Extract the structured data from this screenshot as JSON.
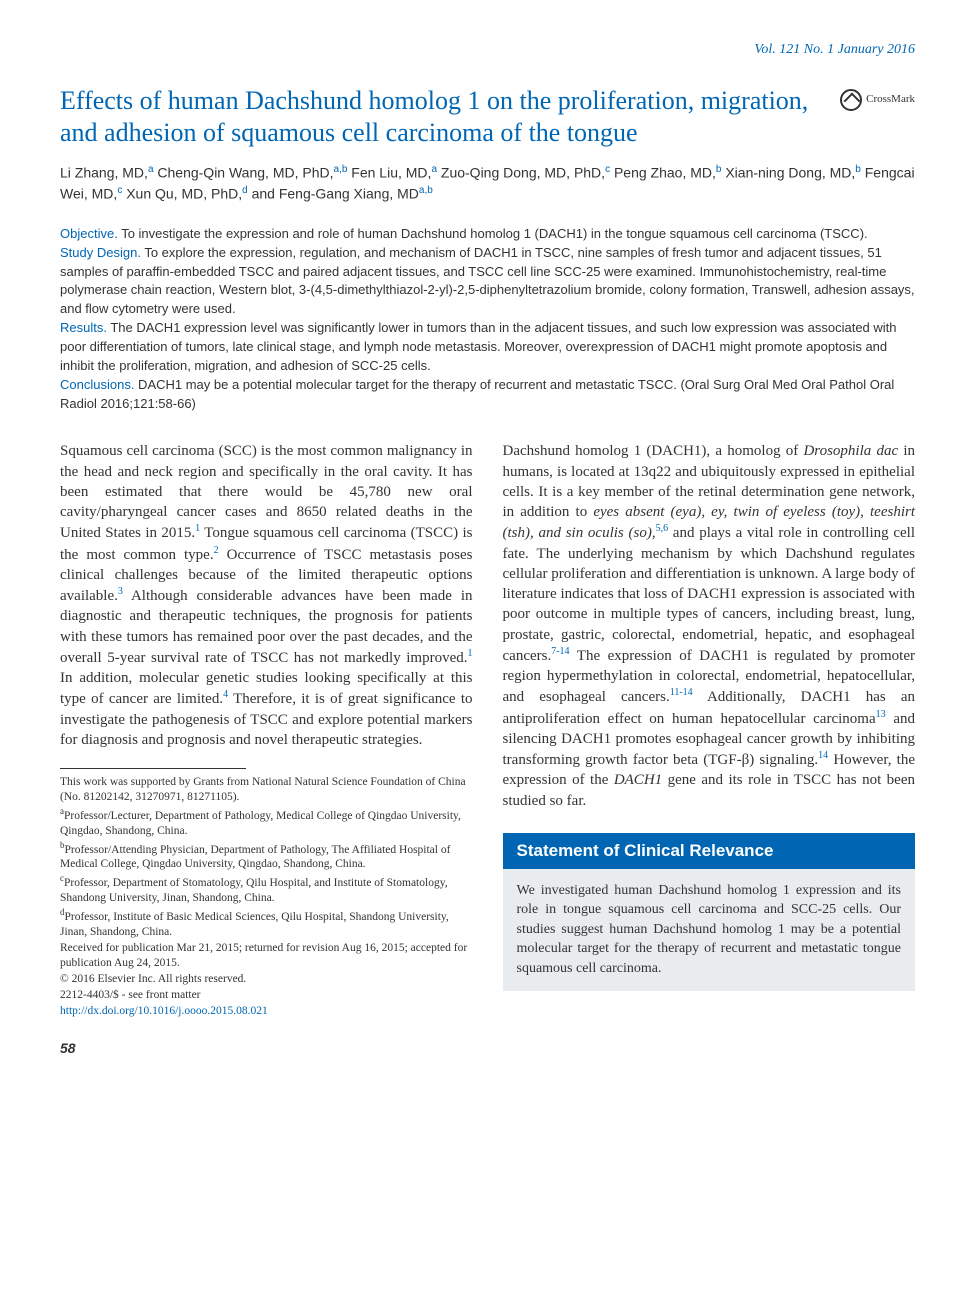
{
  "journal_header": "Vol. 121 No. 1 January 2016",
  "title": "Effects of human Dachshund homolog 1 on the proliferation, migration, and adhesion of squamous cell carcinoma of the tongue",
  "crossmark_label": "CrossMark",
  "authors_html": "Li Zhang, MD,<sup>a</sup> Cheng-Qin Wang, MD, PhD,<sup>a,b</sup> Fen Liu, MD,<sup>a</sup> Zuo-Qing Dong, MD, PhD,<sup>c</sup> Peng Zhao, MD,<sup>b</sup> Xian-ning Dong, MD,<sup>b</sup> Fengcai Wei, MD,<sup>c</sup> Xun Qu, MD, PhD,<sup>d</sup> and Feng-Gang Xiang, MD<sup>a,b</sup>",
  "abstract": {
    "objective_label": "Objective.",
    "objective_text": " To investigate the expression and role of human Dachshund homolog 1 (DACH1) in the tongue squamous cell carcinoma (TSCC).",
    "design_label": "Study Design.",
    "design_text": " To explore the expression, regulation, and mechanism of DACH1 in TSCC, nine samples of fresh tumor and adjacent tissues, 51 samples of paraffin-embedded TSCC and paired adjacent tissues, and TSCC cell line SCC-25 were examined. Immunohistochemistry, real-time polymerase chain reaction, Western blot, 3-(4,5-dimethylthiazol-2-yl)-2,5-diphenyltetrazolium bromide, colony formation, Transwell, adhesion assays, and flow cytometry were used.",
    "results_label": "Results.",
    "results_text": " The DACH1 expression level was significantly lower in tumors than in the adjacent tissues, and such low expression was associated with poor differentiation of tumors, late clinical stage, and lymph node metastasis. Moreover, overexpression of DACH1 might promote apoptosis and inhibit the proliferation, migration, and adhesion of SCC-25 cells.",
    "conclusions_label": "Conclusions.",
    "conclusions_text": " DACH1 may be a potential molecular target for the therapy of recurrent and metastatic TSCC. (Oral Surg Oral Med Oral Pathol Oral Radiol 2016;121:58-66)"
  },
  "body_left_html": "Squamous cell carcinoma (SCC) is the most common malignancy in the head and neck region and specifically in the oral cavity. It has been estimated that there would be 45,780 new oral cavity/pharyngeal cancer cases and 8650 related deaths in the United States in 2015.<sup class=\"ref\">1</sup> Tongue squamous cell carcinoma (TSCC) is the most common type.<sup class=\"ref\">2</sup> Occurrence of TSCC metastasis poses clinical challenges because of the limited therapeutic options available.<sup class=\"ref\">3</sup> Although considerable advances have been made in diagnostic and therapeutic techniques, the prognosis for patients with these tumors has remained poor over the past decades, and the overall 5-year survival rate of TSCC has not markedly improved.<sup class=\"ref\">1</sup> In addition, molecular genetic studies looking specifically at this type of cancer are limited.<sup class=\"ref\">4</sup> Therefore, it is of great significance to investigate the pathogenesis of TSCC and explore potential markers for diagnosis and prognosis and novel therapeutic strategies.",
  "body_right_html": "Dachshund homolog 1 (DACH1), a homolog of <span class=\"italic\">Drosophila dac</span> in humans, is located at 13q22 and ubiquitously expressed in epithelial cells. It is a key member of the retinal determination gene network, in addition to <span class=\"italic\">eyes absent (eya), ey, twin of eyeless (toy), teeshirt (tsh), and sin oculis (so)</span>,<sup class=\"ref\">5,6</sup> and plays a vital role in controlling cell fate. The underlying mechanism by which Dachshund regulates cellular proliferation and differentiation is unknown. A large body of literature indicates that loss of DACH1 expression is associated with poor outcome in multiple types of cancers, including breast, lung, prostate, gastric, colorectal, endometrial, hepatic, and esophageal cancers.<sup class=\"ref\">7-14</sup> The expression of DACH1 is regulated by promoter region hypermethylation in colorectal, endometrial, hepatocellular, and esophageal cancers.<sup class=\"ref\">11-14</sup> Additionally, DACH1 has an antiproliferation effect on human hepatocellular carcinoma<sup class=\"ref\">13</sup> and silencing DACH1 promotes esophageal cancer growth by inhibiting transforming growth factor beta (TGF-β) signaling.<sup class=\"ref\">14</sup> However, the expression of the <span class=\"italic\">DACH1</span> gene and its role in TSCC has not been studied so far.",
  "footnotes": {
    "funding": "This work was supported by Grants from National Natural Science Foundation of China (No. 81202142, 31270971, 81271105).",
    "a": "Professor/Lecturer, Department of Pathology, Medical College of Qingdao University, Qingdao, Shandong, China.",
    "b": "Professor/Attending Physician, Department of Pathology, The Affiliated Hospital of Medical College, Qingdao University, Qingdao, Shandong, China.",
    "c": "Professor, Department of Stomatology, Qilu Hospital, and Institute of Stomatology, Shandong University, Jinan, Shandong, China.",
    "d": "Professor, Institute of Basic Medical Sciences, Qilu Hospital, Shandong University, Jinan, Shandong, China.",
    "received": "Received for publication Mar 21, 2015; returned for revision Aug 16, 2015; accepted for publication Aug 24, 2015.",
    "copyright": "© 2016 Elsevier Inc. All rights reserved.",
    "issn": "2212-4403/$ - see front matter",
    "doi": "http://dx.doi.org/10.1016/j.oooo.2015.08.021"
  },
  "clinical": {
    "header": "Statement of Clinical Relevance",
    "body": "We investigated human Dachshund homolog 1 expression and its role in tongue squamous cell carcinoma and SCC-25 cells. Our studies suggest human Dachshund homolog 1 may be a potential molecular target for the therapy of recurrent and metastatic tongue squamous cell carcinoma."
  },
  "page_number": "58",
  "colors": {
    "accent": "#0066b3",
    "box_bg": "#e8ecef",
    "text": "#333333"
  }
}
